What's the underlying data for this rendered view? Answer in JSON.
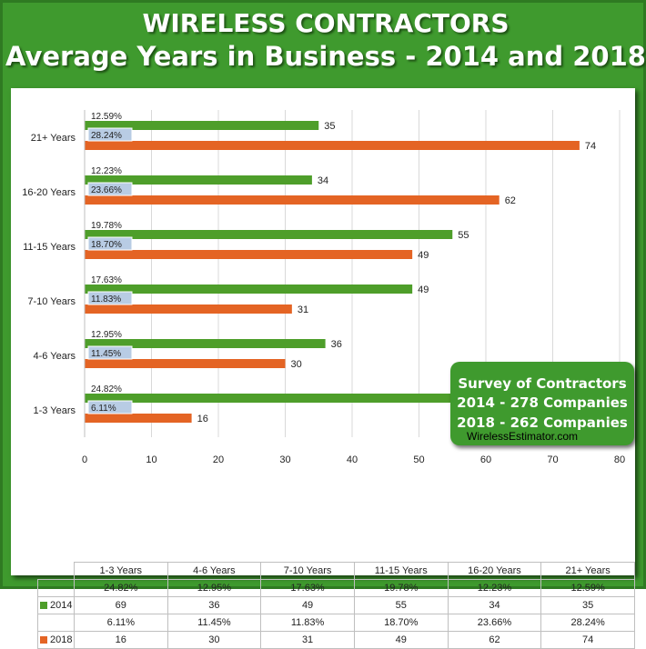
{
  "title_line1": "WIRELESS CONTRACTORS",
  "title_line2": "Average Years in Business - 2014 and 2018",
  "legend_box": {
    "line1": "Survey of Contractors",
    "line2": "2014 - 278 Companies",
    "line3": "2018 - 262 Companies",
    "line4": "WirelessEstimator.com"
  },
  "colors": {
    "series_2014": "#4e9e2a",
    "series_2018": "#e46424",
    "percent_label_bg": "#b8cce4",
    "frame": "#3f9a2e"
  },
  "chart_data": {
    "type": "bar",
    "orientation": "horizontal",
    "categories": [
      "1-3 Years",
      "4-6 Years",
      "7-10 Years",
      "11-15 Years",
      "16-20 Years",
      "21+ Years"
    ],
    "series": [
      {
        "name": "2014",
        "values": [
          69,
          36,
          49,
          55,
          34,
          35
        ],
        "percent_labels": [
          "24.82%",
          "12.95%",
          "17.63%",
          "19.78%",
          "12.23%",
          "12.59%"
        ]
      },
      {
        "name": "2018",
        "values": [
          16,
          30,
          31,
          49,
          62,
          74
        ],
        "percent_labels": [
          "6.11%",
          "11.45%",
          "11.83%",
          "18.70%",
          "23.66%",
          "28.24%"
        ]
      }
    ],
    "xlim": [
      0,
      80
    ],
    "x_ticks": [
      0,
      10,
      20,
      30,
      40,
      50,
      60,
      70,
      80
    ],
    "grid": true,
    "data_table": true
  }
}
